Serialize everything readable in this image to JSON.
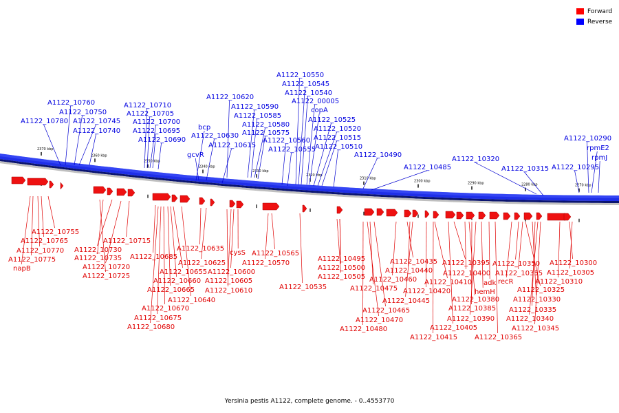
{
  "legend": {
    "forward": {
      "label": "Forward",
      "color": "#ff0000"
    },
    "reverse": {
      "label": "Reverse",
      "color": "#0000ff"
    }
  },
  "footer": "Yersinia pestis A1122, complete genome. - 0..4553770",
  "ticks": [
    "2370 kbp",
    "2360 kbp",
    "2350 kbp",
    "2340 kbp",
    "2330 kbp",
    "2320 kbp",
    "2310 kbp",
    "2300 kbp",
    "2290 kbp",
    "2280 kbp",
    "2270 kbp"
  ],
  "reverse_genes": [
    "A1122_10760",
    "A1122_10750",
    "A1122_10780",
    "A1122_10745",
    "A1122_10740",
    "A1122_10710",
    "A1122_10705",
    "A1122_10700",
    "A1122_10695",
    "A1122_10690",
    "A1122_10620",
    "A1122_10590",
    "A1122_10585",
    "A1122_10580",
    "bcp",
    "A1122_10630",
    "gcvR",
    "A1122_10615",
    "A1122_10575",
    "A1122_10550",
    "A1122_10545",
    "A1122_10540",
    "A1122_00005",
    "copA",
    "A1122_10525",
    "A1122_10520",
    "A1122_10515",
    "A1122_10510",
    "A1122_10560",
    "A1122_10555",
    "A1122_10490",
    "A1122_10485",
    "A1122_10320",
    "A1122_10315",
    "A1122_10295",
    "A1122_10290",
    "rpmE2",
    "rpmJ"
  ],
  "forward_genes": [
    "A1122_10755",
    "A1122_10765",
    "A1122_10770",
    "A1122_10775",
    "napB",
    "A1122_10730",
    "A1122_10735",
    "A1122_10720",
    "A1122_10725",
    "A1122_10715",
    "A1122_10685",
    "A1122_10655",
    "A1122_10660",
    "A1122_10665",
    "A1122_10670",
    "A1122_10675",
    "A1122_10680",
    "A1122_10640",
    "A1122_10635",
    "A1122_10625",
    "cysS",
    "A1122_10600",
    "A1122_10605",
    "A1122_10610",
    "A1122_10565",
    "A1122_10570",
    "A1122_10535",
    "A1122_10495",
    "A1122_10500",
    "A1122_10505",
    "A1122_10475",
    "A1122_10470",
    "A1122_10480",
    "A1122_10465",
    "A1122_10435",
    "A1122_10440",
    "A1122_10460",
    "A1122_10445",
    "A1122_10420",
    "A1122_10410",
    "A1122_10415",
    "A1122_10405",
    "A1122_10395",
    "A1122_10400",
    "A1122_10380",
    "A1122_10385",
    "A1122_10390",
    "hemH",
    "adk",
    "recR",
    "A1122_10350",
    "A1122_10355",
    "A1122_10365",
    "A1122_10325",
    "A1122_10330",
    "A1122_10335",
    "A1122_10340",
    "A1122_10345",
    "A1122_10300",
    "A1122_10305",
    "A1122_10310"
  ]
}
